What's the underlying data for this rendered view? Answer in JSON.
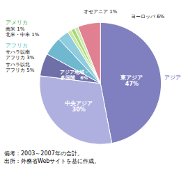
{
  "chart_data": {
    "type": "pie",
    "categories": [
      "東アジア\n47%",
      "中央アジア\n30%",
      "アジア地域・\n多国間　6%",
      "サハラ以北\nアフリカ 5%",
      "サハラ以南\nアフリカ 3%",
      "北米・中米 1%",
      "南米 1%",
      "オセアニア 1%",
      "ヨーロッパ 6%"
    ],
    "values": [
      47,
      30,
      6,
      5,
      3,
      1,
      1,
      1,
      6
    ],
    "colors": [
      "#8080c0",
      "#b0b0e0",
      "#7070a8",
      "#70b8d0",
      "#90cce0",
      "#c8e8a0",
      "#a8d878",
      "#d0e8b0",
      "#e08090"
    ],
    "data_labels": true,
    "annotations": [
      {
        "text": "アジア",
        "color": "#6060c0"
      },
      {
        "text": "アメリカ",
        "color": "#40b040"
      },
      {
        "text": "アフリカ",
        "color": "#40c0c0"
      }
    ],
    "caption": [
      "備考：2003～2007年の合計。",
      "出所：外務省Webサイトを基に作成。"
    ]
  }
}
